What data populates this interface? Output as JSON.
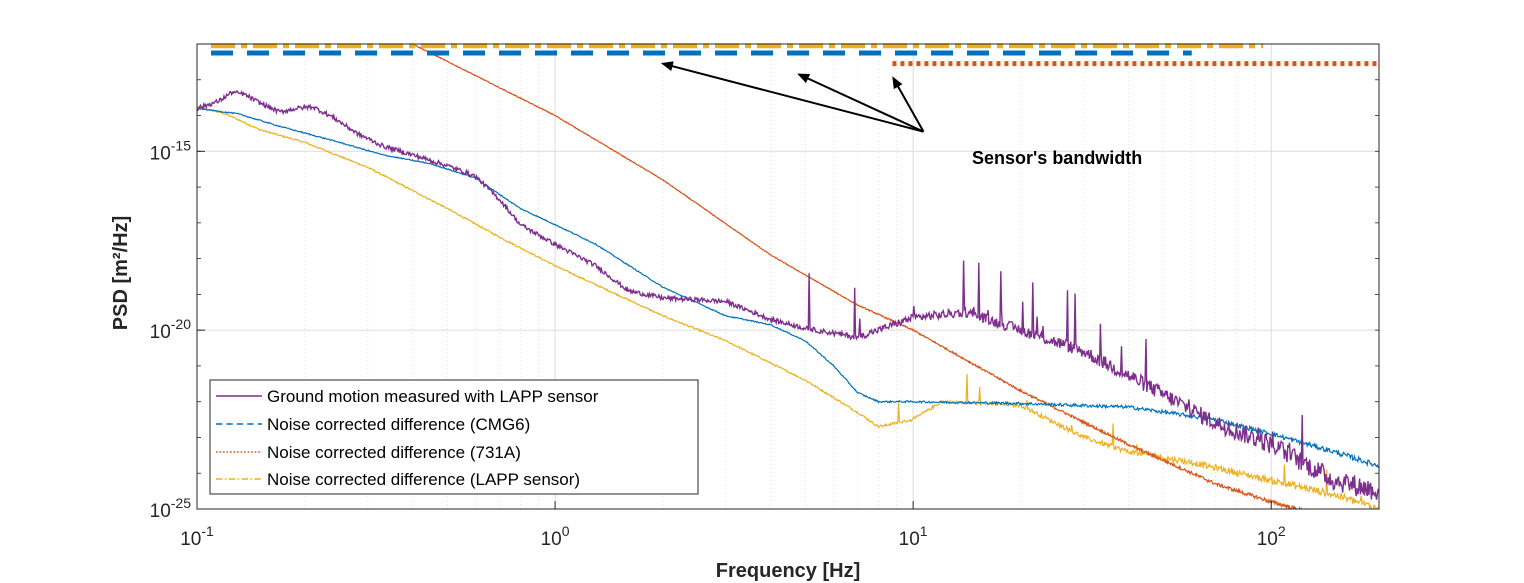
{
  "chart_data": {
    "type": "line",
    "title": "",
    "xlabel": "Frequency [Hz]",
    "ylabel": "PSD [m²/Hz]",
    "xscale": "log",
    "yscale": "log",
    "xlim": [
      0.1,
      200
    ],
    "ylim_exp": [
      -25,
      -12
    ],
    "grid": true,
    "x_ticks": [
      {
        "base": "10",
        "exp": "-1",
        "value": 0.1
      },
      {
        "base": "10",
        "exp": "0",
        "value": 1
      },
      {
        "base": "10",
        "exp": "1",
        "value": 10
      },
      {
        "base": "10",
        "exp": "2",
        "value": 100
      }
    ],
    "y_ticks": [
      {
        "base": "10",
        "exp": "-25",
        "value_exp": -25
      },
      {
        "base": "10",
        "exp": "-20",
        "value_exp": -20
      },
      {
        "base": "10",
        "exp": "-15",
        "value_exp": -15
      }
    ],
    "legend_position": "bottom-left",
    "series": [
      {
        "name": "Ground motion measured with LAPP sensor",
        "color": "#7E2F8E",
        "style": "solid",
        "noise": 0.5,
        "log10_psd": [
          [
            0.1,
            -13.8
          ],
          [
            0.115,
            -13.6
          ],
          [
            0.125,
            -13.35
          ],
          [
            0.135,
            -13.4
          ],
          [
            0.15,
            -13.65
          ],
          [
            0.17,
            -13.9
          ],
          [
            0.19,
            -13.8
          ],
          [
            0.21,
            -13.75
          ],
          [
            0.24,
            -14.05
          ],
          [
            0.28,
            -14.5
          ],
          [
            0.33,
            -14.85
          ],
          [
            0.4,
            -15.1
          ],
          [
            0.5,
            -15.4
          ],
          [
            0.6,
            -15.7
          ],
          [
            0.7,
            -16.35
          ],
          [
            0.8,
            -17.05
          ],
          [
            1.0,
            -17.6
          ],
          [
            1.3,
            -18.2
          ],
          [
            1.6,
            -18.9
          ],
          [
            2.0,
            -19.1
          ],
          [
            2.5,
            -19.15
          ],
          [
            3.0,
            -19.2
          ],
          [
            4.0,
            -19.7
          ],
          [
            5.0,
            -19.95
          ],
          [
            7.0,
            -20.2
          ],
          [
            10.0,
            -19.65
          ],
          [
            14.0,
            -19.5
          ],
          [
            20.0,
            -20.0
          ],
          [
            30.0,
            -20.6
          ],
          [
            50.0,
            -21.8
          ],
          [
            70.0,
            -22.6
          ],
          [
            100.0,
            -23.2
          ],
          [
            150.0,
            -24.2
          ],
          [
            200.0,
            -24.5
          ]
        ]
      },
      {
        "name": "Noise corrected difference (CMG6)",
        "color": "#0072BD",
        "style": "dashed",
        "noise": 0.1,
        "log10_psd": [
          [
            0.1,
            -13.8
          ],
          [
            0.13,
            -13.95
          ],
          [
            0.17,
            -14.3
          ],
          [
            0.25,
            -14.75
          ],
          [
            0.33,
            -15.1
          ],
          [
            0.45,
            -15.35
          ],
          [
            0.6,
            -15.75
          ],
          [
            0.8,
            -16.6
          ],
          [
            1.0,
            -17.05
          ],
          [
            1.3,
            -17.6
          ],
          [
            2.0,
            -18.8
          ],
          [
            3.0,
            -19.6
          ],
          [
            4.0,
            -19.85
          ],
          [
            5.0,
            -20.3
          ],
          [
            6.0,
            -21.0
          ],
          [
            7.0,
            -21.75
          ],
          [
            8.0,
            -22.0
          ],
          [
            10.0,
            -22.0
          ],
          [
            20.0,
            -22.05
          ],
          [
            40.0,
            -22.15
          ],
          [
            70.0,
            -22.5
          ],
          [
            100.0,
            -22.9
          ],
          [
            150.0,
            -23.4
          ],
          [
            200.0,
            -23.8
          ]
        ]
      },
      {
        "name": "Noise corrected difference (731A)",
        "color": "#D95319",
        "style": "dotted",
        "noise": 0.08,
        "log10_psd": [
          [
            0.4,
            -12.0
          ],
          [
            1.0,
            -14.0
          ],
          [
            2.0,
            -15.8
          ],
          [
            4.0,
            -17.9
          ],
          [
            7.0,
            -19.3
          ],
          [
            10.0,
            -20.0
          ],
          [
            20.0,
            -21.7
          ],
          [
            40.0,
            -23.2
          ],
          [
            70.0,
            -24.3
          ],
          [
            100.0,
            -24.8
          ],
          [
            140.0,
            -25.2
          ]
        ]
      },
      {
        "name": "Noise corrected difference (LAPP sensor)",
        "color": "#EDB120",
        "style": "dashdot",
        "noise": 0.15,
        "log10_psd": [
          [
            0.1,
            -13.75
          ],
          [
            0.12,
            -13.95
          ],
          [
            0.15,
            -14.4
          ],
          [
            0.2,
            -14.75
          ],
          [
            0.3,
            -15.45
          ],
          [
            0.5,
            -16.6
          ],
          [
            0.7,
            -17.4
          ],
          [
            1.0,
            -18.2
          ],
          [
            2.0,
            -19.6
          ],
          [
            3.0,
            -20.3
          ],
          [
            5.0,
            -21.4
          ],
          [
            7.0,
            -22.3
          ],
          [
            8.0,
            -22.7
          ],
          [
            10.0,
            -22.5
          ],
          [
            12.0,
            -22.0
          ],
          [
            20.0,
            -22.1
          ],
          [
            30.0,
            -23.0
          ],
          [
            40.0,
            -23.4
          ],
          [
            60.0,
            -23.7
          ],
          [
            100.0,
            -24.2
          ],
          [
            150.0,
            -24.6
          ],
          [
            200.0,
            -25.0
          ]
        ]
      }
    ],
    "bandwidth_bars": [
      {
        "name": "LAPP sensor",
        "color": "#EDB120",
        "style": "dashdot",
        "x_from": 0.1,
        "x_to": 95,
        "level_exp": -12.05
      },
      {
        "name": "CMG6",
        "color": "#0072BD",
        "style": "dashed",
        "x_from": 0.1,
        "x_to": 60,
        "level_exp": -12.25
      },
      {
        "name": "731A",
        "color": "#D95319",
        "style": "dotted",
        "x_from": 8,
        "x_to": 200,
        "level_exp": -12.55
      }
    ],
    "annotation": {
      "text": "Sensor's bandwidth",
      "arrow_origin": {
        "x": 12,
        "y_exp": -14.45
      },
      "arrow_targets": [
        {
          "x": 2.0,
          "y_exp": -12.55
        },
        {
          "x": 4.8,
          "y_exp": -12.85
        },
        {
          "x": 8.8,
          "y_exp": -12.95
        }
      ]
    }
  }
}
